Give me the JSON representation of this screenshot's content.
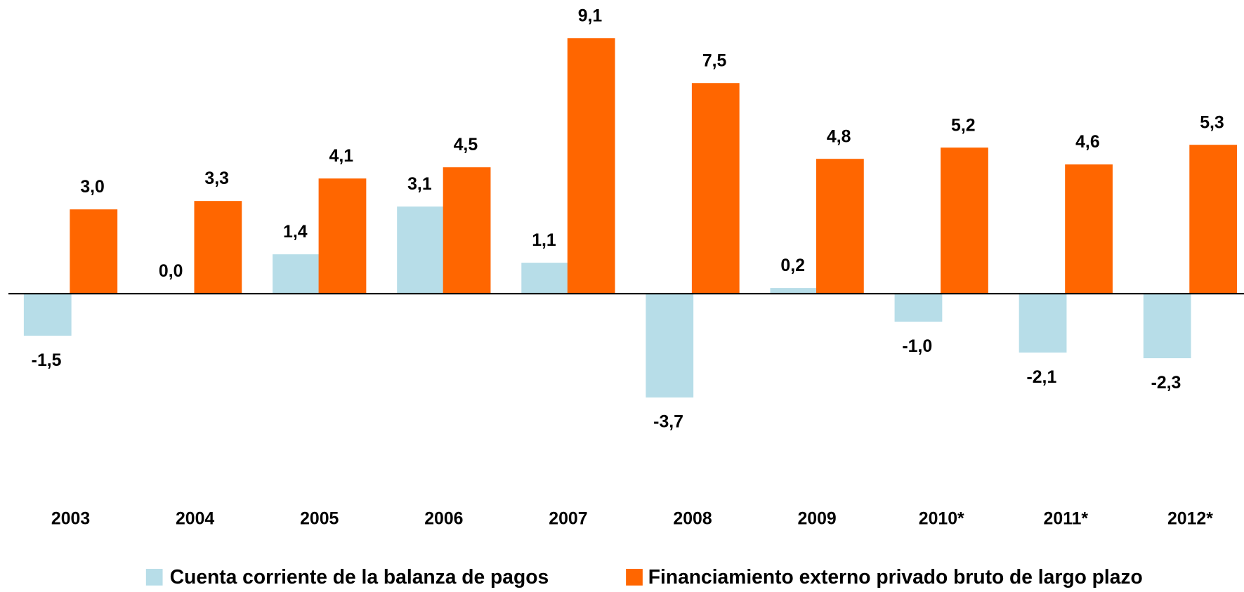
{
  "chart_data": {
    "type": "bar",
    "categories": [
      "2003",
      "2004",
      "2005",
      "2006",
      "2007",
      "2008",
      "2009",
      "2010*",
      "2011*",
      "2012*"
    ],
    "series": [
      {
        "name": "Cuenta corriente de la balanza de pagos",
        "color": "#b7dde8",
        "values": [
          -1.5,
          0.0,
          1.4,
          3.1,
          1.1,
          -3.7,
          0.2,
          -1.0,
          -2.1,
          -2.3
        ],
        "value_labels": [
          "-1,5",
          "0,0",
          "1,4",
          "3,1",
          "1,1",
          "-3,7",
          "0,2",
          "-1,0",
          "-2,1",
          "-2,3"
        ]
      },
      {
        "name": "Financiamiento externo privado bruto de largo plazo",
        "color": "#ff6600",
        "values": [
          3.0,
          3.3,
          4.1,
          4.5,
          9.1,
          7.5,
          4.8,
          5.2,
          4.6,
          5.3
        ],
        "value_labels": [
          "3,0",
          "3,3",
          "4,1",
          "4,5",
          "9,1",
          "7,5",
          "4,8",
          "5,2",
          "4,6",
          "5,3"
        ]
      }
    ]
  }
}
